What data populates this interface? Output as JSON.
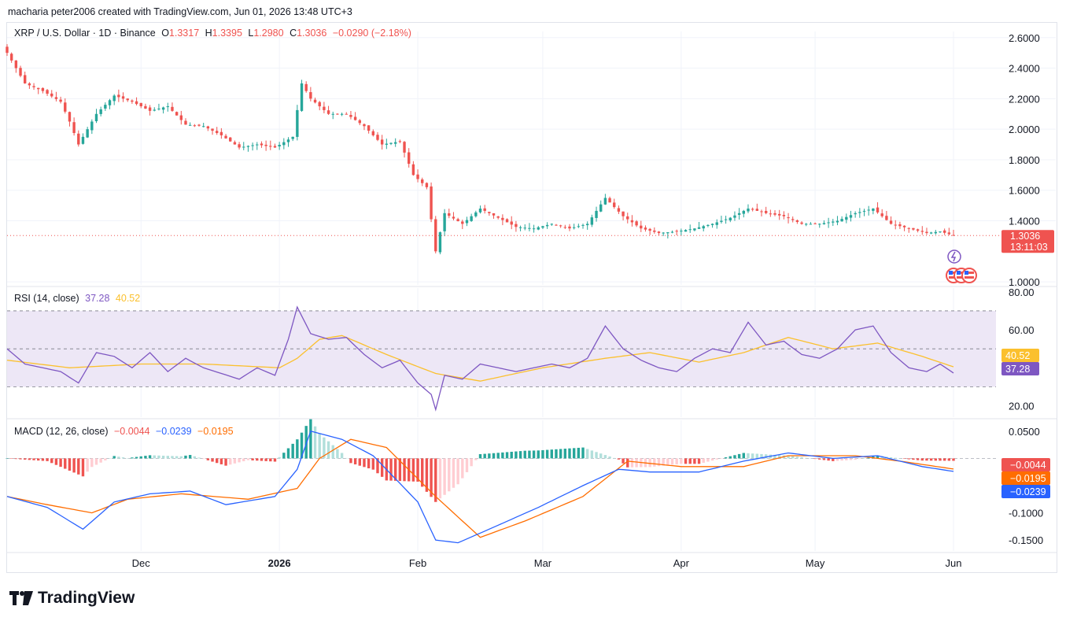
{
  "attribution": "macharia peter2006 created with TradingView.com, Jun 01, 2026 13:48 UTC+3",
  "main_legend": {
    "symbol": "XRP / U.S. Dollar · 1D · Binance",
    "o_label": "O",
    "o_value": "1.3317",
    "h_label": "H",
    "h_value": "1.3395",
    "l_label": "L",
    "l_value": "1.2980",
    "c_label": "C",
    "c_value": "1.3036",
    "change": "−0.0290 (−2.18%)"
  },
  "price_tag": {
    "value": "1.3036",
    "countdown": "13:11:03"
  },
  "rsi_legend": {
    "name": "RSI (14, close)",
    "rsi": "37.28",
    "ma": "40.52"
  },
  "macd_legend": {
    "name": "MACD (12, 26, close)",
    "hist": "−0.0044",
    "macd": "−0.0239",
    "signal": "−0.0195"
  },
  "tags": {
    "rsi_ma": "40.52",
    "rsi": "37.28",
    "macd_hist": "−0.0044",
    "macd_signal": "−0.0195",
    "macd_line": "−0.0239"
  },
  "logo_text": "TradingView",
  "colors": {
    "up": "#26a69a",
    "down": "#ef5350",
    "rsi": "#7e57c2",
    "rsi_ma": "#fbc02d",
    "macd": "#2962ff",
    "signal": "#ff6d00",
    "rsi_band": "#ede7f6"
  },
  "chart_data": [
    {
      "type": "candlestick",
      "title": "XRP / U.S. Dollar · 1D · Binance",
      "y_ticks": [
        "2.6000",
        "2.4000",
        "2.2000",
        "2.0000",
        "1.8000",
        "1.6000",
        "1.4000",
        "1.0000"
      ],
      "y_tick_values": [
        2.6,
        2.4,
        2.2,
        2.0,
        1.8,
        1.6,
        1.4,
        1.0
      ],
      "ylim": [
        0.98,
        2.64
      ],
      "x_ticks": [
        "Dec",
        "2026",
        "Feb",
        "Mar",
        "Apr",
        "May",
        "Jun"
      ],
      "x_tick_dates": [
        "2025-12-01",
        "2026-01-01",
        "2026-02-01",
        "2026-03-01",
        "2026-04-01",
        "2026-05-01",
        "2026-06-01"
      ],
      "x_range": [
        "2025-11-01",
        "2026-06-01"
      ],
      "last_close": 1.3036,
      "close_anchors": [
        [
          "2025-11-01",
          2.5
        ],
        [
          "2025-11-05",
          2.3
        ],
        [
          "2025-11-09",
          2.25
        ],
        [
          "2025-11-13",
          2.18
        ],
        [
          "2025-11-15",
          2.05
        ],
        [
          "2025-11-17",
          1.9
        ],
        [
          "2025-11-21",
          2.1
        ],
        [
          "2025-11-25",
          2.22
        ],
        [
          "2025-11-29",
          2.18
        ],
        [
          "2025-12-03",
          2.12
        ],
        [
          "2025-12-07",
          2.15
        ],
        [
          "2025-12-11",
          2.03
        ],
        [
          "2025-12-15",
          2.02
        ],
        [
          "2025-12-19",
          1.96
        ],
        [
          "2025-12-23",
          1.88
        ],
        [
          "2025-12-27",
          1.9
        ],
        [
          "2025-12-31",
          1.88
        ],
        [
          "2026-01-04",
          1.95
        ],
        [
          "2026-01-06",
          2.3
        ],
        [
          "2026-01-08",
          2.2
        ],
        [
          "2026-01-12",
          2.1
        ],
        [
          "2026-01-16",
          2.1
        ],
        [
          "2026-01-20",
          2.02
        ],
        [
          "2026-01-24",
          1.9
        ],
        [
          "2026-01-28",
          1.92
        ],
        [
          "2026-01-31",
          1.7
        ],
        [
          "2026-02-03",
          1.62
        ],
        [
          "2026-02-05",
          1.2
        ],
        [
          "2026-02-07",
          1.45
        ],
        [
          "2026-02-11",
          1.38
        ],
        [
          "2026-02-15",
          1.48
        ],
        [
          "2026-02-19",
          1.42
        ],
        [
          "2026-02-23",
          1.36
        ],
        [
          "2026-02-27",
          1.35
        ],
        [
          "2026-03-03",
          1.38
        ],
        [
          "2026-03-07",
          1.35
        ],
        [
          "2026-03-11",
          1.38
        ],
        [
          "2026-03-15",
          1.55
        ],
        [
          "2026-03-19",
          1.43
        ],
        [
          "2026-03-23",
          1.35
        ],
        [
          "2026-03-27",
          1.32
        ],
        [
          "2026-03-31",
          1.33
        ],
        [
          "2026-04-04",
          1.35
        ],
        [
          "2026-04-08",
          1.38
        ],
        [
          "2026-04-12",
          1.42
        ],
        [
          "2026-04-16",
          1.48
        ],
        [
          "2026-04-20",
          1.45
        ],
        [
          "2026-04-24",
          1.43
        ],
        [
          "2026-04-28",
          1.38
        ],
        [
          "2026-05-02",
          1.38
        ],
        [
          "2026-05-06",
          1.4
        ],
        [
          "2026-05-10",
          1.45
        ],
        [
          "2026-05-14",
          1.48
        ],
        [
          "2026-05-18",
          1.38
        ],
        [
          "2026-05-22",
          1.35
        ],
        [
          "2026-05-26",
          1.32
        ],
        [
          "2026-05-29",
          1.33
        ],
        [
          "2026-06-01",
          1.3036
        ]
      ]
    },
    {
      "type": "line",
      "title": "RSI (14, close)",
      "ylim": [
        14,
        82
      ],
      "y_ticks": [
        "80.00",
        "60.00",
        "20.00"
      ],
      "y_tick_values": [
        80,
        60,
        20
      ],
      "bands": [
        30,
        50,
        70
      ],
      "series": [
        {
          "name": "RSI",
          "last": 37.28,
          "points": [
            [
              "2025-11-01",
              50
            ],
            [
              "2025-11-05",
              42
            ],
            [
              "2025-11-09",
              40
            ],
            [
              "2025-11-13",
              38
            ],
            [
              "2025-11-17",
              32
            ],
            [
              "2025-11-21",
              48
            ],
            [
              "2025-11-25",
              46
            ],
            [
              "2025-11-29",
              40
            ],
            [
              "2025-12-03",
              48
            ],
            [
              "2025-12-07",
              38
            ],
            [
              "2025-12-11",
              45
            ],
            [
              "2025-12-15",
              40
            ],
            [
              "2025-12-19",
              37
            ],
            [
              "2025-12-23",
              34
            ],
            [
              "2025-12-27",
              40
            ],
            [
              "2025-12-31",
              36
            ],
            [
              "2026-01-03",
              55
            ],
            [
              "2026-01-05",
              72
            ],
            [
              "2026-01-08",
              58
            ],
            [
              "2026-01-12",
              55
            ],
            [
              "2026-01-16",
              56
            ],
            [
              "2026-01-20",
              47
            ],
            [
              "2026-01-24",
              40
            ],
            [
              "2026-01-28",
              44
            ],
            [
              "2026-02-01",
              32
            ],
            [
              "2026-02-04",
              26
            ],
            [
              "2026-02-05",
              18
            ],
            [
              "2026-02-07",
              36
            ],
            [
              "2026-02-11",
              34
            ],
            [
              "2026-02-15",
              42
            ],
            [
              "2026-02-19",
              40
            ],
            [
              "2026-02-23",
              38
            ],
            [
              "2026-02-27",
              40
            ],
            [
              "2026-03-03",
              42
            ],
            [
              "2026-03-07",
              40
            ],
            [
              "2026-03-11",
              45
            ],
            [
              "2026-03-15",
              62
            ],
            [
              "2026-03-19",
              50
            ],
            [
              "2026-03-23",
              44
            ],
            [
              "2026-03-27",
              40
            ],
            [
              "2026-03-31",
              38
            ],
            [
              "2026-04-04",
              45
            ],
            [
              "2026-04-08",
              50
            ],
            [
              "2026-04-12",
              48
            ],
            [
              "2026-04-16",
              64
            ],
            [
              "2026-04-20",
              52
            ],
            [
              "2026-04-24",
              54
            ],
            [
              "2026-04-28",
              47
            ],
            [
              "2026-05-02",
              45
            ],
            [
              "2026-05-06",
              50
            ],
            [
              "2026-05-10",
              60
            ],
            [
              "2026-05-14",
              62
            ],
            [
              "2026-05-18",
              48
            ],
            [
              "2026-05-22",
              40
            ],
            [
              "2026-05-26",
              38
            ],
            [
              "2026-05-29",
              42
            ],
            [
              "2026-06-01",
              37.28
            ]
          ]
        },
        {
          "name": "RSI-based MA",
          "last": 40.52,
          "points": [
            [
              "2025-11-01",
              44
            ],
            [
              "2025-11-15",
              40
            ],
            [
              "2025-12-01",
              42
            ],
            [
              "2025-12-15",
              42
            ],
            [
              "2026-01-01",
              40
            ],
            [
              "2026-01-05",
              45
            ],
            [
              "2026-01-10",
              55
            ],
            [
              "2026-01-15",
              57
            ],
            [
              "2026-01-25",
              47
            ],
            [
              "2026-02-05",
              37
            ],
            [
              "2026-02-15",
              33
            ],
            [
              "2026-03-01",
              40
            ],
            [
              "2026-03-15",
              45
            ],
            [
              "2026-03-25",
              48
            ],
            [
              "2026-04-05",
              43
            ],
            [
              "2026-04-15",
              48
            ],
            [
              "2026-04-25",
              56
            ],
            [
              "2026-05-05",
              50
            ],
            [
              "2026-05-15",
              53
            ],
            [
              "2026-05-25",
              46
            ],
            [
              "2026-06-01",
              40.52
            ]
          ]
        }
      ]
    },
    {
      "type": "macd",
      "title": "MACD (12, 26, close)",
      "ylim": [
        -0.17,
        0.07
      ],
      "y_ticks": [
        "0.0500",
        "-0.1000",
        "-0.1500"
      ],
      "y_tick_values": [
        0.05,
        -0.1,
        -0.15
      ],
      "series": [
        {
          "name": "MACD",
          "last": -0.0239,
          "points": [
            [
              "2025-11-01",
              -0.07
            ],
            [
              "2025-11-10",
              -0.09
            ],
            [
              "2025-11-18",
              -0.13
            ],
            [
              "2025-11-25",
              -0.08
            ],
            [
              "2025-12-03",
              -0.065
            ],
            [
              "2025-12-12",
              -0.06
            ],
            [
              "2025-12-20",
              -0.085
            ],
            [
              "2025-12-31",
              -0.07
            ],
            [
              "2026-01-05",
              -0.02
            ],
            [
              "2026-01-08",
              0.05
            ],
            [
              "2026-01-15",
              0.035
            ],
            [
              "2026-01-22",
              0.005
            ],
            [
              "2026-02-01",
              -0.08
            ],
            [
              "2026-02-05",
              -0.15
            ],
            [
              "2026-02-10",
              -0.155
            ],
            [
              "2026-02-17",
              -0.13
            ],
            [
              "2026-02-28",
              -0.09
            ],
            [
              "2026-03-10",
              -0.05
            ],
            [
              "2026-03-18",
              -0.02
            ],
            [
              "2026-03-25",
              -0.025
            ],
            [
              "2026-04-05",
              -0.025
            ],
            [
              "2026-04-15",
              -0.005
            ],
            [
              "2026-04-25",
              0.01
            ],
            [
              "2026-05-05",
              0.0
            ],
            [
              "2026-05-15",
              0.005
            ],
            [
              "2026-05-25",
              -0.015
            ],
            [
              "2026-06-01",
              -0.0239
            ]
          ]
        },
        {
          "name": "Signal",
          "last": -0.0195,
          "points": [
            [
              "2025-11-01",
              -0.07
            ],
            [
              "2025-11-10",
              -0.085
            ],
            [
              "2025-11-20",
              -0.1
            ],
            [
              "2025-11-28",
              -0.075
            ],
            [
              "2025-12-10",
              -0.065
            ],
            [
              "2025-12-25",
              -0.075
            ],
            [
              "2026-01-05",
              -0.055
            ],
            [
              "2026-01-10",
              0.0
            ],
            [
              "2026-01-17",
              0.035
            ],
            [
              "2026-01-25",
              0.02
            ],
            [
              "2026-02-05",
              -0.07
            ],
            [
              "2026-02-15",
              -0.145
            ],
            [
              "2026-02-25",
              -0.115
            ],
            [
              "2026-03-10",
              -0.07
            ],
            [
              "2026-03-20",
              -0.005
            ],
            [
              "2026-04-01",
              -0.015
            ],
            [
              "2026-04-15",
              -0.015
            ],
            [
              "2026-04-25",
              0.005
            ],
            [
              "2026-05-10",
              0.005
            ],
            [
              "2026-05-20",
              -0.005
            ],
            [
              "2026-06-01",
              -0.0195
            ]
          ]
        },
        {
          "name": "Histogram",
          "last": -0.0044
        }
      ]
    }
  ]
}
